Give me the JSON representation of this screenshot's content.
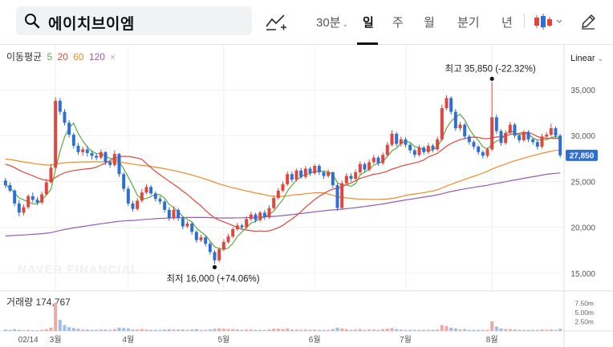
{
  "search": {
    "query": "에이치브이엠"
  },
  "toolbar": {
    "periods": {
      "min30": "30분",
      "day": "일",
      "week": "주",
      "month": "월",
      "quarter": "분기",
      "year": "년"
    },
    "active_period": "일"
  },
  "legend": {
    "title": "이동평균",
    "ma": [
      {
        "label": "5",
        "color": "#5aab3b"
      },
      {
        "label": "20",
        "color": "#e0463c"
      },
      {
        "label": "60",
        "color": "#ef8a24"
      },
      {
        "label": "120",
        "color": "#9b59b6"
      }
    ],
    "close": "×"
  },
  "scale_mode": "Linear",
  "watermark": "NAVER FINANCIAL",
  "annotations": {
    "high": "최고 35,850 (-22.32%)",
    "low": "최저 16,000 (+74.06%)"
  },
  "current_price_label": "27,850",
  "volume": {
    "label": "거래량 174,767",
    "axis": [
      "7.50m",
      "5.00m",
      "2.50m"
    ]
  },
  "chart_data": {
    "type": "candlestick",
    "y_ticks": [
      "35,000",
      "30,000",
      "25,000",
      "20,000",
      "15,000"
    ],
    "y_tick_values": [
      35000,
      30000,
      25000,
      20000,
      15000
    ],
    "x_ticks": [
      "02/14",
      "3월",
      "4월",
      "5월",
      "6월",
      "7월",
      "8월"
    ],
    "ylim": [
      13500,
      38500
    ],
    "high": 35850,
    "low": 16000,
    "last": 27850,
    "colors": {
      "up": "#e0463c",
      "down": "#2e6fd6"
    },
    "ma_colors": {
      "ma5": "#5aab3b",
      "ma20": "#e0463c",
      "ma60": "#ef8a24",
      "ma120": "#9b59b6"
    },
    "candles": [
      [
        25100,
        24600,
        25400,
        24300
      ],
      [
        24600,
        24000,
        24900,
        23800
      ],
      [
        24000,
        22600,
        24200,
        22300
      ],
      [
        22600,
        21600,
        23000,
        21200
      ],
      [
        21600,
        22200,
        22500,
        21300
      ],
      [
        22200,
        23400,
        23600,
        22000
      ],
      [
        23400,
        23000,
        23800,
        22700
      ],
      [
        23000,
        22700,
        23300,
        22400
      ],
      [
        22700,
        23600,
        23900,
        22500
      ],
      [
        23600,
        24900,
        25300,
        23500
      ],
      [
        24900,
        26500,
        26900,
        24800
      ],
      [
        26500,
        33800,
        34200,
        26300
      ],
      [
        33800,
        32600,
        34100,
        32300
      ],
      [
        32600,
        31400,
        32900,
        31100
      ],
      [
        31400,
        30100,
        31700,
        29800
      ],
      [
        30100,
        28900,
        30300,
        28600
      ],
      [
        28900,
        28200,
        29200,
        27900
      ],
      [
        28200,
        28500,
        28800,
        27800
      ],
      [
        28500,
        28100,
        28900,
        27700
      ],
      [
        28100,
        27800,
        28400,
        27400
      ],
      [
        27800,
        27600,
        28000,
        27300
      ],
      [
        27600,
        28200,
        28500,
        27400
      ],
      [
        28200,
        27100,
        28300,
        26800
      ],
      [
        27100,
        26800,
        27400,
        26500
      ],
      [
        26800,
        28000,
        28400,
        26600
      ],
      [
        28000,
        25800,
        28100,
        25500
      ],
      [
        25800,
        24200,
        26000,
        23900
      ],
      [
        24200,
        22600,
        24500,
        22300
      ],
      [
        22600,
        22000,
        22900,
        21700
      ],
      [
        22000,
        22900,
        23200,
        21800
      ],
      [
        22900,
        23800,
        24200,
        22700
      ],
      [
        23800,
        24400,
        24700,
        23600
      ],
      [
        24400,
        23700,
        24600,
        23500
      ],
      [
        23700,
        23100,
        23900,
        22800
      ],
      [
        23100,
        22800,
        23400,
        22500
      ],
      [
        22800,
        21900,
        23000,
        21600
      ],
      [
        21900,
        21000,
        22200,
        20700
      ],
      [
        21000,
        21900,
        22300,
        20800
      ],
      [
        21900,
        21000,
        22100,
        20700
      ],
      [
        21000,
        20100,
        21200,
        19800
      ],
      [
        20100,
        20400,
        20700,
        19900
      ],
      [
        20400,
        19500,
        20600,
        19200
      ],
      [
        19500,
        18600,
        19700,
        18300
      ],
      [
        18600,
        18900,
        19200,
        18400
      ],
      [
        18900,
        18200,
        19100,
        17900
      ],
      [
        18200,
        17300,
        18400,
        17000
      ],
      [
        17300,
        16400,
        17500,
        16000
      ],
      [
        16400,
        17600,
        17800,
        16200
      ],
      [
        17600,
        18400,
        18700,
        17400
      ],
      [
        18400,
        19000,
        19300,
        18200
      ],
      [
        19000,
        19800,
        20000,
        18800
      ],
      [
        19800,
        20200,
        20500,
        19600
      ],
      [
        20200,
        20000,
        20400,
        19700
      ],
      [
        20000,
        20900,
        21200,
        19800
      ],
      [
        20900,
        21400,
        21700,
        20700
      ],
      [
        21400,
        20800,
        21600,
        20500
      ],
      [
        20800,
        21600,
        21800,
        20600
      ],
      [
        21600,
        21100,
        21900,
        20800
      ],
      [
        21100,
        22100,
        22400,
        20900
      ],
      [
        22100,
        23200,
        23500,
        21900
      ],
      [
        23200,
        24000,
        24300,
        23000
      ],
      [
        24000,
        24700,
        25000,
        23800
      ],
      [
        24700,
        25800,
        26100,
        24500
      ],
      [
        25800,
        25200,
        26100,
        24900
      ],
      [
        25200,
        26200,
        26400,
        25000
      ],
      [
        26200,
        25500,
        26500,
        25300
      ],
      [
        25500,
        26400,
        26700,
        25300
      ],
      [
        26400,
        25900,
        26600,
        25600
      ],
      [
        25900,
        26700,
        26900,
        25700
      ],
      [
        26700,
        26000,
        26900,
        25700
      ],
      [
        26000,
        25600,
        26200,
        25300
      ],
      [
        25600,
        26000,
        26300,
        25400
      ],
      [
        26000,
        24600,
        26100,
        24300
      ],
      [
        24600,
        22100,
        24800,
        21800
      ],
      [
        22100,
        24800,
        25100,
        22000
      ],
      [
        24800,
        25600,
        25900,
        24600
      ],
      [
        25600,
        25300,
        25900,
        25000
      ],
      [
        25300,
        26000,
        26300,
        25100
      ],
      [
        26000,
        26900,
        27200,
        25800
      ],
      [
        26900,
        26300,
        27100,
        26000
      ],
      [
        26300,
        27100,
        27400,
        26100
      ],
      [
        27100,
        27600,
        27900,
        26900
      ],
      [
        27600,
        27000,
        27800,
        26700
      ],
      [
        27000,
        27900,
        28200,
        26800
      ],
      [
        27900,
        29000,
        29300,
        27700
      ],
      [
        29000,
        30200,
        30600,
        28800
      ],
      [
        30200,
        29100,
        30400,
        28800
      ],
      [
        29100,
        29600,
        29900,
        28800
      ],
      [
        29600,
        29000,
        29800,
        28700
      ],
      [
        29000,
        28400,
        29200,
        28100
      ],
      [
        28400,
        27900,
        28600,
        27600
      ],
      [
        27900,
        28700,
        29000,
        27700
      ],
      [
        28700,
        28200,
        28900,
        27900
      ],
      [
        28200,
        28900,
        29200,
        28000
      ],
      [
        28900,
        28500,
        29100,
        28200
      ],
      [
        28500,
        29600,
        29900,
        28300
      ],
      [
        29600,
        33000,
        33400,
        29400
      ],
      [
        33000,
        34100,
        34400,
        32800
      ],
      [
        34100,
        32600,
        34300,
        32300
      ],
      [
        32600,
        30800,
        32900,
        30500
      ],
      [
        30800,
        31200,
        31500,
        30500
      ],
      [
        31200,
        29900,
        31400,
        29600
      ],
      [
        29900,
        29300,
        30100,
        29000
      ],
      [
        29300,
        28800,
        29500,
        28500
      ],
      [
        28800,
        28200,
        29000,
        27900
      ],
      [
        28200,
        27800,
        28400,
        27500
      ],
      [
        27800,
        28500,
        28700,
        27600
      ],
      [
        28500,
        32000,
        35850,
        28300
      ],
      [
        32000,
        30500,
        32300,
        30200
      ],
      [
        30500,
        29200,
        30700,
        28900
      ],
      [
        29200,
        30300,
        30600,
        29000
      ],
      [
        30300,
        31200,
        31500,
        30100
      ],
      [
        31200,
        30000,
        31400,
        29700
      ],
      [
        30000,
        29500,
        30200,
        29200
      ],
      [
        29500,
        30400,
        30600,
        29300
      ],
      [
        30400,
        29600,
        30600,
        29300
      ],
      [
        29600,
        29300,
        29800,
        29000
      ],
      [
        29300,
        28800,
        29500,
        28500
      ],
      [
        28800,
        29900,
        30200,
        28600
      ],
      [
        29900,
        30100,
        30400,
        29700
      ],
      [
        30100,
        30800,
        31300,
        29900
      ],
      [
        30800,
        30000,
        31000,
        29700
      ],
      [
        30000,
        27850,
        30200,
        27600
      ]
    ],
    "volumes": [
      0.4,
      0.3,
      0.5,
      0.3,
      0.2,
      0.3,
      0.2,
      0.2,
      0.3,
      0.5,
      0.9,
      7.6,
      3.0,
      1.6,
      1.0,
      0.8,
      0.6,
      0.4,
      0.4,
      0.3,
      0.3,
      0.4,
      0.4,
      0.3,
      0.5,
      0.9,
      0.8,
      0.7,
      0.4,
      0.4,
      0.5,
      0.4,
      0.3,
      0.3,
      0.3,
      0.4,
      0.5,
      0.4,
      0.4,
      0.4,
      0.3,
      0.4,
      0.5,
      0.3,
      0.3,
      0.4,
      0.6,
      0.7,
      0.6,
      0.5,
      0.5,
      0.4,
      0.3,
      0.4,
      0.4,
      0.3,
      0.3,
      0.3,
      0.4,
      0.6,
      0.6,
      0.5,
      0.7,
      0.4,
      0.4,
      0.3,
      0.4,
      0.3,
      0.4,
      0.3,
      0.3,
      0.3,
      0.5,
      0.9,
      0.7,
      0.5,
      0.3,
      0.4,
      0.5,
      0.3,
      0.4,
      0.4,
      0.3,
      0.5,
      0.6,
      0.8,
      0.5,
      0.4,
      0.3,
      0.3,
      0.3,
      0.3,
      0.3,
      0.3,
      0.3,
      0.4,
      1.6,
      1.3,
      0.9,
      0.7,
      0.4,
      0.5,
      0.3,
      0.3,
      0.3,
      0.3,
      0.3,
      2.6,
      1.2,
      0.7,
      0.5,
      0.5,
      0.4,
      0.3,
      0.3,
      0.3,
      0.3,
      0.3,
      0.4,
      0.3,
      0.4,
      0.3,
      0.6
    ]
  }
}
